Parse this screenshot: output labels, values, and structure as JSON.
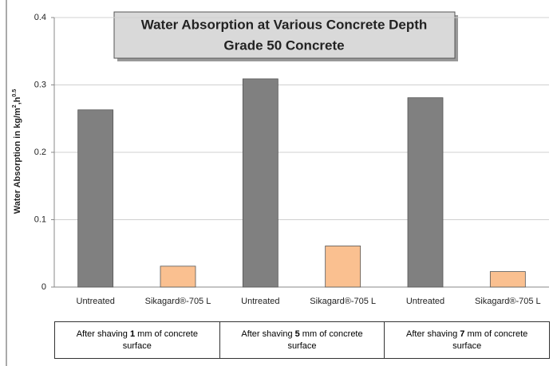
{
  "chart_data": {
    "type": "bar",
    "title": [
      "Water Absorption at Various Concrete Depth",
      "Grade 50 Concrete"
    ],
    "ylabel": [
      "Water Absorption in kg/m",
      "2",
      ",h",
      "0.5"
    ],
    "categories": [
      "Untreated",
      "Sikagard®-705 L",
      "Untreated",
      "Sikagard®-705 L",
      "Untreated",
      "Sikagard®-705 L"
    ],
    "values": [
      0.263,
      0.031,
      0.309,
      0.061,
      0.281,
      0.023
    ],
    "colors": [
      "#808080",
      "#fac090",
      "#808080",
      "#fac090",
      "#808080",
      "#fac090"
    ],
    "groups": [
      [
        "After shaving ",
        "1",
        " mm of concrete surface"
      ],
      [
        "After shaving ",
        "5",
        " mm of concrete surface"
      ],
      [
        "After shaving ",
        "7",
        " mm of concrete surface"
      ]
    ],
    "ylim": [
      0,
      0.4
    ],
    "yticks": [
      0,
      0.1,
      0.2,
      0.3,
      0.4
    ],
    "grid": true
  }
}
